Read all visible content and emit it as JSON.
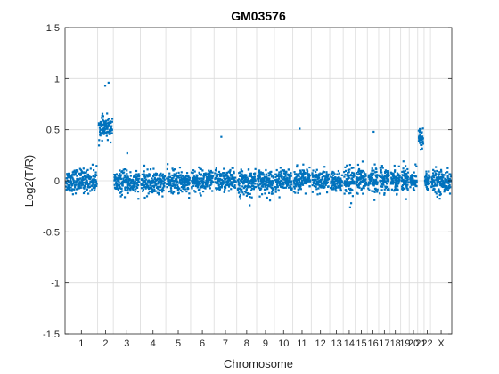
{
  "chart_data": {
    "type": "scatter",
    "title": "GM03576",
    "xlabel": "Chromosome",
    "ylabel": "Log2(T/R)",
    "ylim": [
      -1.5,
      1.5
    ],
    "yticks": [
      -1.5,
      -1,
      -0.5,
      0,
      0.5,
      1,
      1.5
    ],
    "ytick_labels": [
      "-1.5",
      "-1",
      "-0.5",
      "0",
      "0.5",
      "1",
      "1.5"
    ],
    "grid": true,
    "marker_color": "#0072BD",
    "axis_color": "#262626",
    "grid_color": "#dcdcdc",
    "chromosomes": [
      {
        "label": "1",
        "points": 230,
        "base": 0.0,
        "spread": 0.055
      },
      {
        "label": "2",
        "points": 110,
        "base": 0.52,
        "spread": 0.05
      },
      {
        "label": "3",
        "points": 190,
        "base": -0.02,
        "spread": 0.055
      },
      {
        "label": "4",
        "points": 180,
        "base": -0.02,
        "spread": 0.055
      },
      {
        "label": "5",
        "points": 175,
        "base": -0.01,
        "spread": 0.055
      },
      {
        "label": "6",
        "points": 165,
        "base": 0.0,
        "spread": 0.055
      },
      {
        "label": "7",
        "points": 160,
        "base": 0.0,
        "spread": 0.055
      },
      {
        "label": "8",
        "points": 140,
        "base": -0.02,
        "spread": 0.06
      },
      {
        "label": "9",
        "points": 125,
        "base": -0.01,
        "spread": 0.055
      },
      {
        "label": "10",
        "points": 130,
        "base": 0.0,
        "spread": 0.055
      },
      {
        "label": "11",
        "points": 130,
        "base": 0.01,
        "spread": 0.055
      },
      {
        "label": "12",
        "points": 130,
        "base": 0.0,
        "spread": 0.055
      },
      {
        "label": "13",
        "points": 95,
        "base": -0.01,
        "spread": 0.05
      },
      {
        "label": "14",
        "points": 85,
        "base": -0.02,
        "spread": 0.07
      },
      {
        "label": "15",
        "points": 85,
        "base": 0.0,
        "spread": 0.06
      },
      {
        "label": "16",
        "points": 80,
        "base": 0.01,
        "spread": 0.06
      },
      {
        "label": "17",
        "points": 80,
        "base": 0.02,
        "spread": 0.06
      },
      {
        "label": "18",
        "points": 75,
        "base": 0.01,
        "spread": 0.055
      },
      {
        "label": "19",
        "points": 60,
        "base": 0.02,
        "spread": 0.06
      },
      {
        "label": "20",
        "points": 60,
        "base": 0.01,
        "spread": 0.055
      },
      {
        "label": "21",
        "points": 45,
        "base": 0.42,
        "spread": 0.05
      },
      {
        "label": "22",
        "points": 45,
        "base": 0.0,
        "spread": 0.06
      },
      {
        "label": "X",
        "points": 150,
        "base": -0.01,
        "spread": 0.055
      }
    ],
    "outliers": [
      {
        "chromosome": "2",
        "y": 0.93
      },
      {
        "chromosome": "2",
        "y": 0.96
      },
      {
        "chromosome": "3",
        "y": 0.27
      },
      {
        "chromosome": "7",
        "y": 0.43
      },
      {
        "chromosome": "11",
        "y": 0.51
      },
      {
        "chromosome": "16",
        "y": 0.48
      },
      {
        "chromosome": "8",
        "y": -0.24
      },
      {
        "chromosome": "14",
        "y": -0.26
      }
    ]
  }
}
